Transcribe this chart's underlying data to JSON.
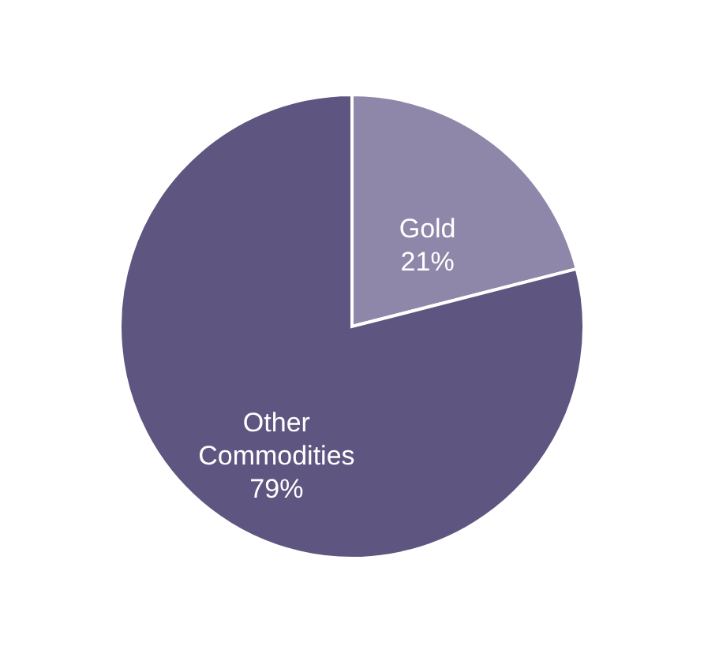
{
  "chart_data": {
    "type": "pie",
    "categories": [
      "Gold",
      "Other Commodities"
    ],
    "values": [
      21,
      79
    ],
    "colors": [
      "#8e87a9",
      "#5e5580"
    ],
    "value_labels": [
      "21%",
      "79%"
    ],
    "legend": false
  }
}
